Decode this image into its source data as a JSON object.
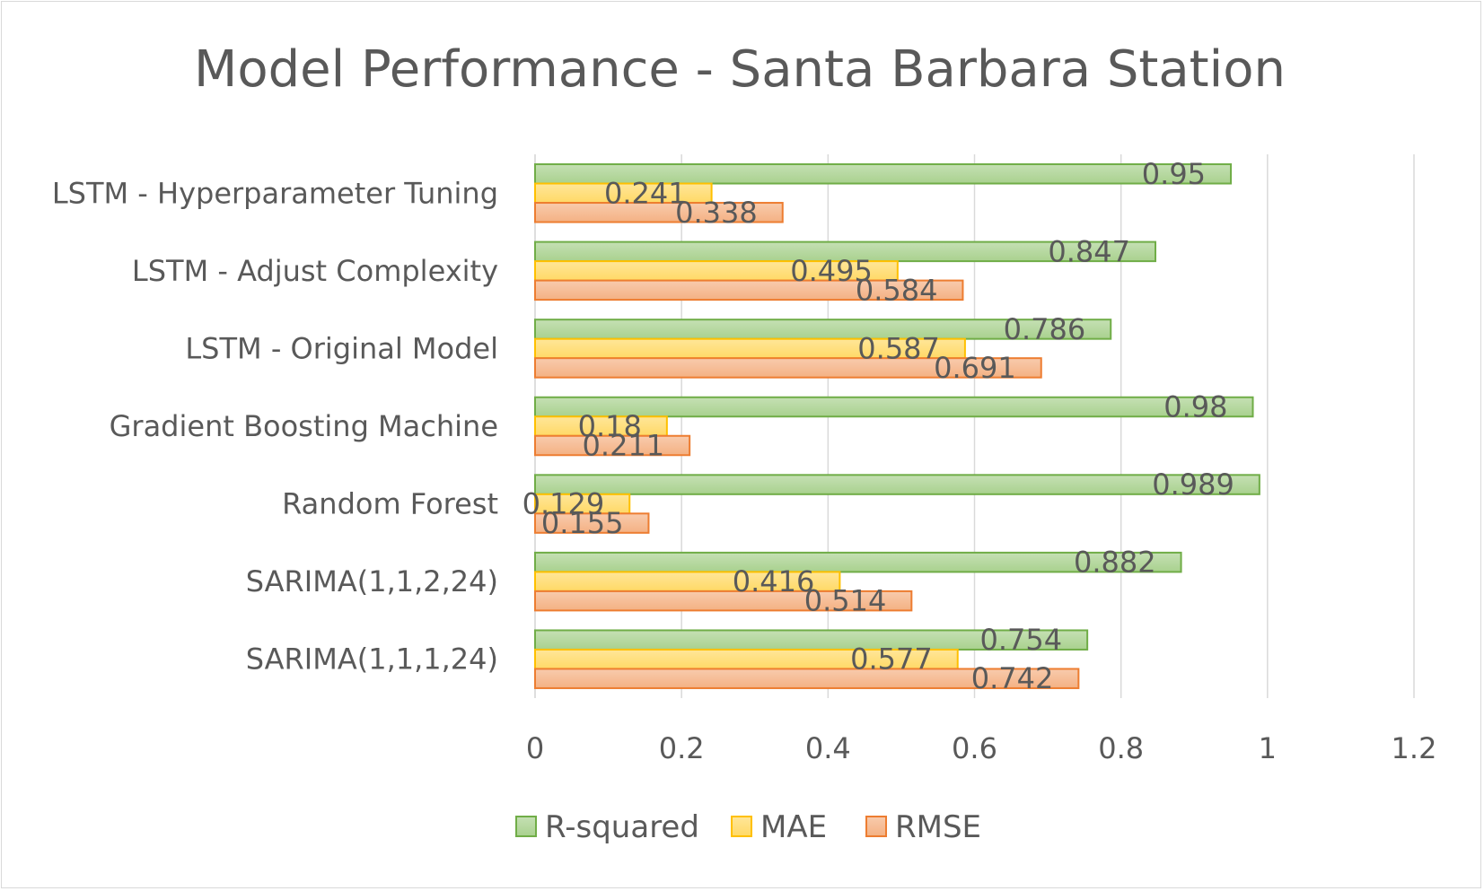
{
  "chart_data": {
    "type": "bar",
    "orientation": "horizontal",
    "title": "Model Performance - Santa Barbara Station",
    "xlabel": "",
    "ylabel": "",
    "categories": [
      "SARIMA(1,1,1,24)",
      "SARIMA(1,1,2,24)",
      "Random Forest",
      "Gradient Boosting Machine",
      "LSTM - Original Model",
      "LSTM - Adjust Complexity",
      "LSTM - Hyperparameter Tuning"
    ],
    "series": [
      {
        "name": "R-squared",
        "values": [
          0.754,
          0.882,
          0.989,
          0.98,
          0.786,
          0.847,
          0.95
        ],
        "labels": [
          "0.754",
          "0.882",
          "0.989",
          "0.98",
          "0.786",
          "0.847",
          "0.95"
        ]
      },
      {
        "name": "MAE",
        "values": [
          0.577,
          0.416,
          0.129,
          0.18,
          0.587,
          0.495,
          0.241
        ],
        "labels": [
          "0.577",
          "0.416",
          "0.129",
          "0.18",
          "0.587",
          "0.495",
          "0.241"
        ]
      },
      {
        "name": "RMSE",
        "values": [
          0.742,
          0.514,
          0.155,
          0.211,
          0.691,
          0.584,
          0.338
        ],
        "labels": [
          "0.742",
          "0.514",
          "0.155",
          "0.211",
          "0.691",
          "0.584",
          "0.338"
        ]
      }
    ],
    "xlim": [
      0,
      1.2
    ],
    "xticks": [
      "0",
      "0.2",
      "0.4",
      "0.6",
      "0.8",
      "1",
      "1.2"
    ],
    "grid": true,
    "legend_position": "bottom",
    "colors": {
      "R-squared": {
        "fill_top": "#c5e0b4",
        "fill_bottom": "#a9d18e",
        "stroke": "#70ad47"
      },
      "MAE": {
        "fill_top": "#ffe699",
        "fill_bottom": "#ffd966",
        "stroke": "#ffc000"
      },
      "RMSE": {
        "fill_top": "#f8cbad",
        "fill_bottom": "#f4b183",
        "stroke": "#ed7d31"
      }
    }
  }
}
